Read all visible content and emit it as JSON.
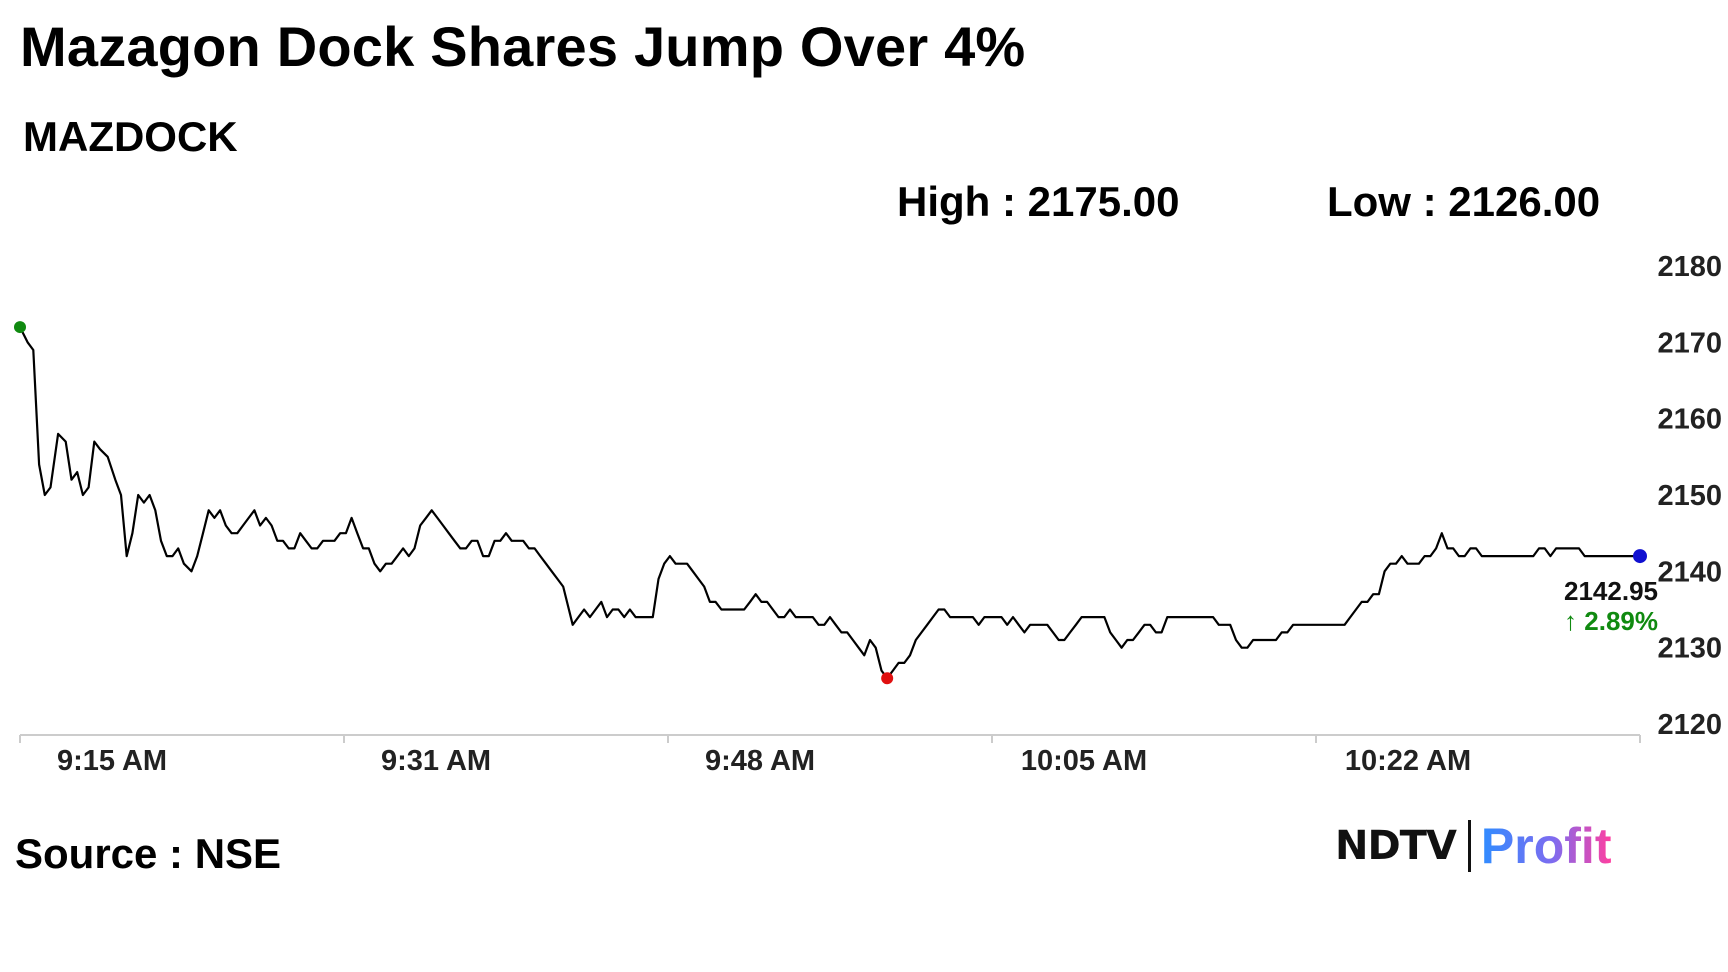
{
  "header": {
    "title": "Mazagon Dock Shares Jump Over 4%",
    "ticker": "MAZDOCK",
    "high_label": "High : 2175.00",
    "low_label": "Low : 2126.00"
  },
  "footer": {
    "source": "Source : NSE",
    "logo_ndtv": "NDTV",
    "logo_profit": "Profit"
  },
  "colors": {
    "line": "#000000",
    "start_marker": "#108a10",
    "low_marker": "#e01010",
    "end_marker": "#1010d0",
    "change_up": "#108a10",
    "axis": "#cccccc"
  },
  "chart_data": {
    "type": "line",
    "title": "",
    "xlabel": "",
    "ylabel": "",
    "ylim": [
      2120,
      2180
    ],
    "yticks": [
      2180,
      2170,
      2160,
      2150,
      2140,
      2130,
      2120
    ],
    "xtick_labels": [
      "9:15 AM",
      "9:31 AM",
      "9:48 AM",
      "10:05 AM",
      "10:22 AM"
    ],
    "x_range_minutes": [
      0,
      85
    ],
    "x_tick_minutes": [
      0,
      17,
      34,
      51,
      68
    ],
    "grid": false,
    "last_price_label": "2142.95",
    "change_label": "↑ 2.89%",
    "series": [
      {
        "points": [
          [
            0,
            2172
          ],
          [
            0.4,
            2170
          ],
          [
            0.7,
            2169
          ],
          [
            1.0,
            2154
          ],
          [
            1.3,
            2150
          ],
          [
            1.6,
            2151
          ],
          [
            2.0,
            2158
          ],
          [
            2.4,
            2157
          ],
          [
            2.7,
            2152
          ],
          [
            3.0,
            2153
          ],
          [
            3.3,
            2150
          ],
          [
            3.6,
            2151
          ],
          [
            3.9,
            2157
          ],
          [
            4.2,
            2156
          ],
          [
            4.6,
            2155
          ],
          [
            5.0,
            2152
          ],
          [
            5.3,
            2150
          ],
          [
            5.6,
            2142
          ],
          [
            5.9,
            2145
          ],
          [
            6.2,
            2150
          ],
          [
            6.5,
            2149
          ],
          [
            6.8,
            2150
          ],
          [
            7.1,
            2148
          ],
          [
            7.4,
            2144
          ],
          [
            7.7,
            2142
          ],
          [
            8.0,
            2142
          ],
          [
            8.3,
            2143
          ],
          [
            8.6,
            2141
          ],
          [
            9.0,
            2140
          ],
          [
            9.3,
            2142
          ],
          [
            9.6,
            2145
          ],
          [
            9.9,
            2148
          ],
          [
            10.2,
            2147
          ],
          [
            10.5,
            2148
          ],
          [
            10.8,
            2146
          ],
          [
            11.1,
            2145
          ],
          [
            11.4,
            2145
          ],
          [
            11.7,
            2146
          ],
          [
            12.0,
            2147
          ],
          [
            12.3,
            2148
          ],
          [
            12.6,
            2146
          ],
          [
            12.9,
            2147
          ],
          [
            13.2,
            2146
          ],
          [
            13.5,
            2144
          ],
          [
            13.8,
            2144
          ],
          [
            14.1,
            2143
          ],
          [
            14.4,
            2143
          ],
          [
            14.7,
            2145
          ],
          [
            15.0,
            2144
          ],
          [
            15.3,
            2143
          ],
          [
            15.6,
            2143
          ],
          [
            15.9,
            2144
          ],
          [
            16.2,
            2144
          ],
          [
            16.5,
            2144
          ],
          [
            16.8,
            2145
          ],
          [
            17.1,
            2145
          ],
          [
            17.4,
            2147
          ],
          [
            17.7,
            2145
          ],
          [
            18.0,
            2143
          ],
          [
            18.3,
            2143
          ],
          [
            18.6,
            2141
          ],
          [
            18.9,
            2140
          ],
          [
            19.2,
            2141
          ],
          [
            19.5,
            2141
          ],
          [
            19.8,
            2142
          ],
          [
            20.1,
            2143
          ],
          [
            20.4,
            2142
          ],
          [
            20.7,
            2143
          ],
          [
            21.0,
            2146
          ],
          [
            21.3,
            2147
          ],
          [
            21.6,
            2148
          ],
          [
            21.9,
            2147
          ],
          [
            22.2,
            2146
          ],
          [
            22.5,
            2145
          ],
          [
            22.8,
            2144
          ],
          [
            23.1,
            2143
          ],
          [
            23.4,
            2143
          ],
          [
            23.7,
            2144
          ],
          [
            24.0,
            2144
          ],
          [
            24.3,
            2142
          ],
          [
            24.6,
            2142
          ],
          [
            24.9,
            2144
          ],
          [
            25.2,
            2144
          ],
          [
            25.5,
            2145
          ],
          [
            25.8,
            2144
          ],
          [
            26.1,
            2144
          ],
          [
            26.4,
            2144
          ],
          [
            26.7,
            2143
          ],
          [
            27.0,
            2143
          ],
          [
            27.3,
            2142
          ],
          [
            27.6,
            2141
          ],
          [
            27.9,
            2140
          ],
          [
            28.2,
            2139
          ],
          [
            28.5,
            2138
          ],
          [
            28.8,
            2135
          ],
          [
            29.0,
            2133
          ],
          [
            29.3,
            2134
          ],
          [
            29.6,
            2135
          ],
          [
            29.9,
            2134
          ],
          [
            30.2,
            2135
          ],
          [
            30.5,
            2136
          ],
          [
            30.8,
            2134
          ],
          [
            31.1,
            2135
          ],
          [
            31.4,
            2135
          ],
          [
            31.7,
            2134
          ],
          [
            32.0,
            2135
          ],
          [
            32.3,
            2134
          ],
          [
            32.6,
            2134
          ],
          [
            32.9,
            2134
          ],
          [
            33.2,
            2134
          ],
          [
            33.5,
            2139
          ],
          [
            33.8,
            2141
          ],
          [
            34.1,
            2142
          ],
          [
            34.4,
            2141
          ],
          [
            34.7,
            2141
          ],
          [
            35.0,
            2141
          ],
          [
            35.3,
            2140
          ],
          [
            35.6,
            2139
          ],
          [
            35.9,
            2138
          ],
          [
            36.2,
            2136
          ],
          [
            36.5,
            2136
          ],
          [
            36.8,
            2135
          ],
          [
            37.1,
            2135
          ],
          [
            37.4,
            2135
          ],
          [
            37.7,
            2135
          ],
          [
            38.0,
            2135
          ],
          [
            38.3,
            2136
          ],
          [
            38.6,
            2137
          ],
          [
            38.9,
            2136
          ],
          [
            39.2,
            2136
          ],
          [
            39.5,
            2135
          ],
          [
            39.8,
            2134
          ],
          [
            40.1,
            2134
          ],
          [
            40.4,
            2135
          ],
          [
            40.7,
            2134
          ],
          [
            41.0,
            2134
          ],
          [
            41.3,
            2134
          ],
          [
            41.6,
            2134
          ],
          [
            41.9,
            2133
          ],
          [
            42.2,
            2133
          ],
          [
            42.5,
            2134
          ],
          [
            42.8,
            2133
          ],
          [
            43.1,
            2132
          ],
          [
            43.4,
            2132
          ],
          [
            43.7,
            2131
          ],
          [
            44.0,
            2130
          ],
          [
            44.3,
            2129
          ],
          [
            44.6,
            2131
          ],
          [
            44.9,
            2130
          ],
          [
            45.2,
            2127
          ],
          [
            45.5,
            2126
          ],
          [
            45.8,
            2127
          ],
          [
            46.1,
            2128
          ],
          [
            46.4,
            2128
          ],
          [
            46.7,
            2129
          ],
          [
            47.0,
            2131
          ],
          [
            47.3,
            2132
          ],
          [
            47.6,
            2133
          ],
          [
            47.9,
            2134
          ],
          [
            48.2,
            2135
          ],
          [
            48.5,
            2135
          ],
          [
            48.8,
            2134
          ],
          [
            49.1,
            2134
          ],
          [
            49.4,
            2134
          ],
          [
            49.7,
            2134
          ],
          [
            50.0,
            2134
          ],
          [
            50.3,
            2133
          ],
          [
            50.6,
            2134
          ],
          [
            50.9,
            2134
          ],
          [
            51.2,
            2134
          ],
          [
            51.5,
            2134
          ],
          [
            51.8,
            2133
          ],
          [
            52.1,
            2134
          ],
          [
            52.4,
            2133
          ],
          [
            52.7,
            2132
          ],
          [
            53.0,
            2133
          ],
          [
            53.3,
            2133
          ],
          [
            53.6,
            2133
          ],
          [
            53.9,
            2133
          ],
          [
            54.2,
            2132
          ],
          [
            54.5,
            2131
          ],
          [
            54.8,
            2131
          ],
          [
            55.1,
            2132
          ],
          [
            55.4,
            2133
          ],
          [
            55.7,
            2134
          ],
          [
            56.0,
            2134
          ],
          [
            56.3,
            2134
          ],
          [
            56.6,
            2134
          ],
          [
            56.9,
            2134
          ],
          [
            57.2,
            2132
          ],
          [
            57.5,
            2131
          ],
          [
            57.8,
            2130
          ],
          [
            58.1,
            2131
          ],
          [
            58.4,
            2131
          ],
          [
            58.7,
            2132
          ],
          [
            59.0,
            2133
          ],
          [
            59.3,
            2133
          ],
          [
            59.6,
            2132
          ],
          [
            59.9,
            2132
          ],
          [
            60.2,
            2134
          ],
          [
            60.5,
            2134
          ],
          [
            60.8,
            2134
          ],
          [
            61.1,
            2134
          ],
          [
            61.4,
            2134
          ],
          [
            61.7,
            2134
          ],
          [
            62.0,
            2134
          ],
          [
            62.3,
            2134
          ],
          [
            62.6,
            2134
          ],
          [
            62.9,
            2133
          ],
          [
            63.2,
            2133
          ],
          [
            63.5,
            2133
          ],
          [
            63.8,
            2131
          ],
          [
            64.1,
            2130
          ],
          [
            64.4,
            2130
          ],
          [
            64.7,
            2131
          ],
          [
            65.0,
            2131
          ],
          [
            65.3,
            2131
          ],
          [
            65.6,
            2131
          ],
          [
            65.9,
            2131
          ],
          [
            66.2,
            2132
          ],
          [
            66.5,
            2132
          ],
          [
            66.8,
            2133
          ],
          [
            67.1,
            2133
          ],
          [
            67.4,
            2133
          ],
          [
            67.7,
            2133
          ],
          [
            68.0,
            2133
          ],
          [
            68.3,
            2133
          ],
          [
            68.6,
            2133
          ],
          [
            68.9,
            2133
          ],
          [
            69.2,
            2133
          ],
          [
            69.5,
            2133
          ],
          [
            69.8,
            2134
          ],
          [
            70.1,
            2135
          ],
          [
            70.4,
            2136
          ],
          [
            70.7,
            2136
          ],
          [
            71.0,
            2137
          ],
          [
            71.3,
            2137
          ],
          [
            71.6,
            2140
          ],
          [
            71.9,
            2141
          ],
          [
            72.2,
            2141
          ],
          [
            72.5,
            2142
          ],
          [
            72.8,
            2141
          ],
          [
            73.1,
            2141
          ],
          [
            73.4,
            2141
          ],
          [
            73.7,
            2142
          ],
          [
            74.0,
            2142
          ],
          [
            74.3,
            2143
          ],
          [
            74.6,
            2145
          ],
          [
            74.9,
            2143
          ],
          [
            75.2,
            2143
          ],
          [
            75.5,
            2142
          ],
          [
            75.8,
            2142
          ],
          [
            76.1,
            2143
          ],
          [
            76.4,
            2143
          ],
          [
            76.7,
            2142
          ],
          [
            77.0,
            2142
          ],
          [
            77.3,
            2142
          ],
          [
            77.6,
            2142
          ],
          [
            77.9,
            2142
          ],
          [
            78.2,
            2142
          ],
          [
            78.5,
            2142
          ],
          [
            78.8,
            2142
          ],
          [
            79.1,
            2142
          ],
          [
            79.4,
            2142
          ],
          [
            79.7,
            2143
          ],
          [
            80.0,
            2143
          ],
          [
            80.3,
            2142
          ],
          [
            80.6,
            2143
          ],
          [
            80.9,
            2143
          ],
          [
            81.2,
            2143
          ],
          [
            81.5,
            2143
          ],
          [
            81.8,
            2143
          ],
          [
            82.1,
            2142
          ],
          [
            82.4,
            2142
          ],
          [
            82.7,
            2142
          ],
          [
            83.0,
            2142
          ],
          [
            83.3,
            2142
          ],
          [
            83.6,
            2142
          ],
          [
            84.0,
            2142
          ],
          [
            85,
            2142
          ]
        ]
      }
    ],
    "markers": {
      "start": [
        0,
        2172
      ],
      "low": [
        45.5,
        2126
      ],
      "end": [
        85,
        2142
      ]
    }
  }
}
